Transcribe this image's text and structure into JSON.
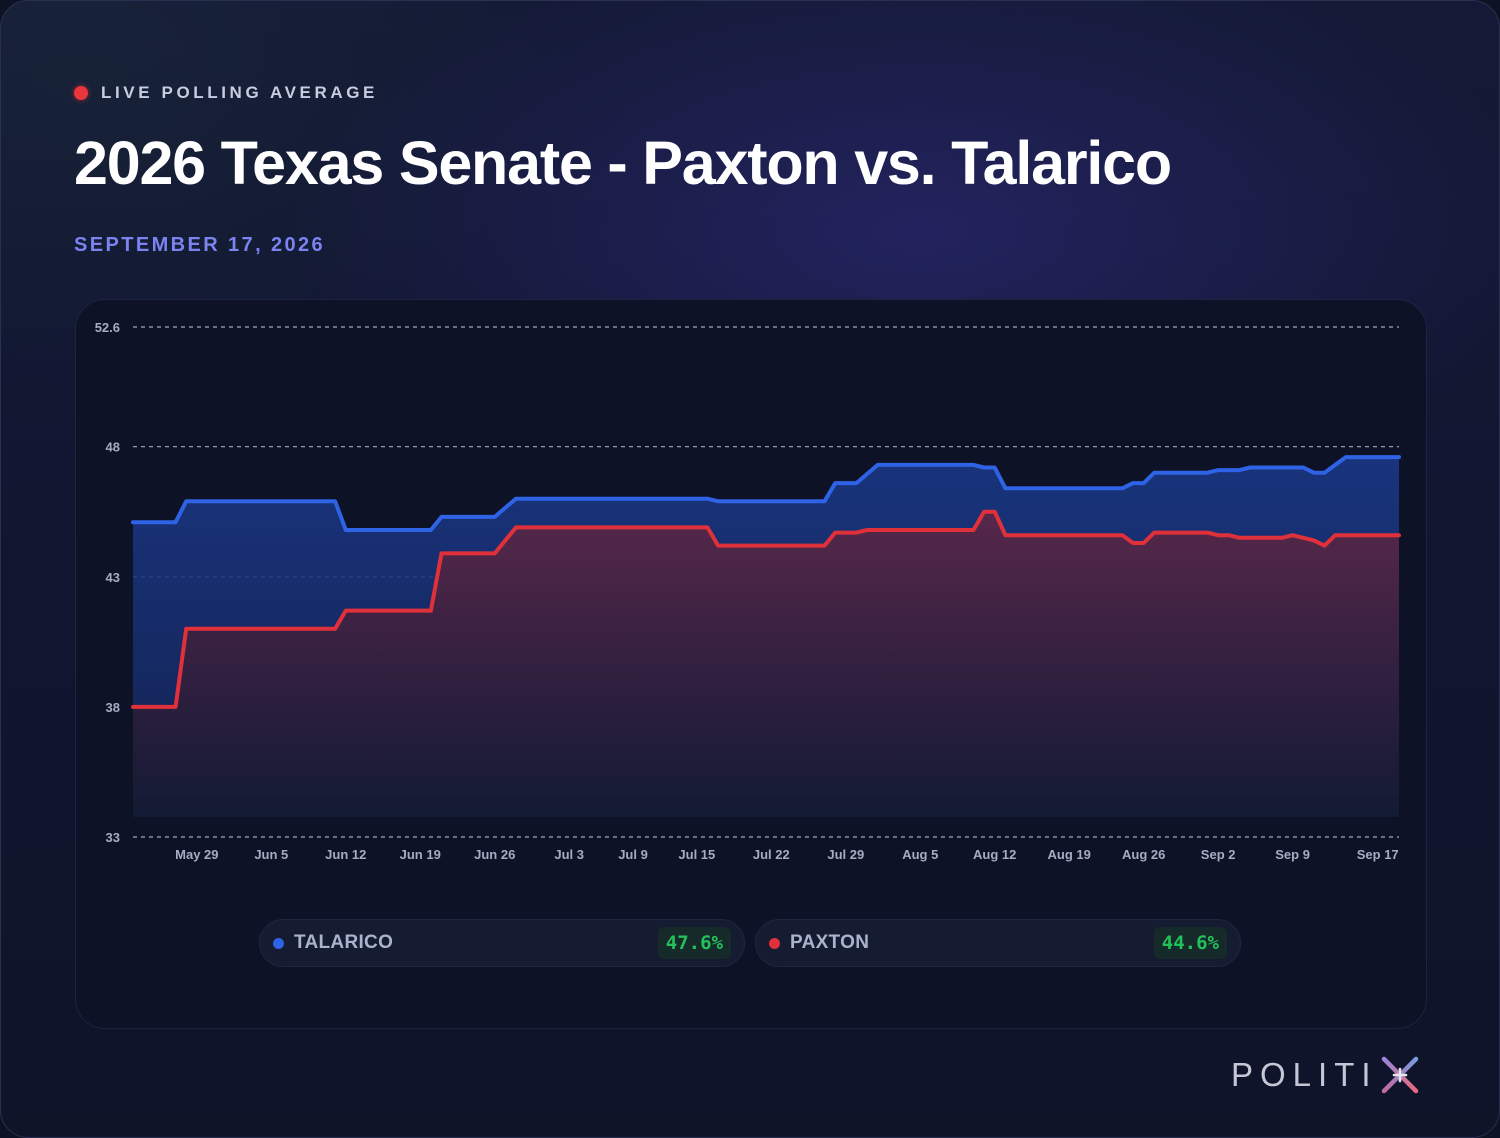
{
  "header": {
    "live_label": "LIVE POLLING AVERAGE",
    "title": "2026 Texas Senate - Paxton vs. Talarico",
    "date": "SEPTEMBER 17, 2026"
  },
  "brand": {
    "name": "POLITI",
    "mark_icon": "x-plus-logo-icon"
  },
  "colors": {
    "talarico": "#2f63e6",
    "paxton": "#e0303a",
    "live_dot": "#e8363c",
    "date": "#7c82f0",
    "value": "#22c05a"
  },
  "legend": [
    {
      "name": "TALARICO",
      "value": "47.6%",
      "color": "#2f63e6"
    },
    {
      "name": "PAXTON",
      "value": "44.6%",
      "color": "#e0303a"
    }
  ],
  "chart_data": {
    "type": "area",
    "title": "",
    "xlabel": "",
    "ylabel": "",
    "ylim": [
      33,
      52.6
    ],
    "yticks": [
      52.6,
      48,
      43,
      38,
      33
    ],
    "grid": true,
    "legend_position": "bottom",
    "xticks": [
      {
        "label": "May 29",
        "date": "2026-05-29"
      },
      {
        "label": "Jun 5",
        "date": "2026-06-05"
      },
      {
        "label": "Jun 12",
        "date": "2026-06-12"
      },
      {
        "label": "Jun 19",
        "date": "2026-06-19"
      },
      {
        "label": "Jun 26",
        "date": "2026-06-26"
      },
      {
        "label": "Jul 3",
        "date": "2026-07-03"
      },
      {
        "label": "Jul 9",
        "date": "2026-07-09"
      },
      {
        "label": "Jul 15",
        "date": "2026-07-15"
      },
      {
        "label": "Jul 22",
        "date": "2026-07-22"
      },
      {
        "label": "Jul 29",
        "date": "2026-07-29"
      },
      {
        "label": "Aug 5",
        "date": "2026-08-05"
      },
      {
        "label": "Aug 12",
        "date": "2026-08-12"
      },
      {
        "label": "Aug 19",
        "date": "2026-08-19"
      },
      {
        "label": "Aug 26",
        "date": "2026-08-26"
      },
      {
        "label": "Sep 2",
        "date": "2026-09-02"
      },
      {
        "label": "Sep 9",
        "date": "2026-09-09"
      },
      {
        "label": "Sep 17",
        "date": "2026-09-17"
      }
    ],
    "series": [
      {
        "name": "TALARICO",
        "color": "#2f63e6",
        "points": [
          [
            "2026-05-23",
            45.1
          ],
          [
            "2026-05-27",
            45.1
          ],
          [
            "2026-05-28",
            45.9
          ],
          [
            "2026-06-11",
            45.9
          ],
          [
            "2026-06-12",
            44.8
          ],
          [
            "2026-06-20",
            44.8
          ],
          [
            "2026-06-21",
            45.3
          ],
          [
            "2026-06-26",
            45.3
          ],
          [
            "2026-06-28",
            46.0
          ],
          [
            "2026-07-16",
            46.0
          ],
          [
            "2026-07-17",
            45.9
          ],
          [
            "2026-07-27",
            45.9
          ],
          [
            "2026-07-28",
            46.6
          ],
          [
            "2026-07-30",
            46.6
          ],
          [
            "2026-08-01",
            47.3
          ],
          [
            "2026-08-10",
            47.3
          ],
          [
            "2026-08-11",
            47.2
          ],
          [
            "2026-08-12",
            47.2
          ],
          [
            "2026-08-13",
            46.4
          ],
          [
            "2026-08-24",
            46.4
          ],
          [
            "2026-08-25",
            46.6
          ],
          [
            "2026-08-26",
            46.6
          ],
          [
            "2026-08-27",
            47.0
          ],
          [
            "2026-09-01",
            47.0
          ],
          [
            "2026-09-02",
            47.1
          ],
          [
            "2026-09-04",
            47.1
          ],
          [
            "2026-09-05",
            47.2
          ],
          [
            "2026-09-10",
            47.2
          ],
          [
            "2026-09-11",
            47.0
          ],
          [
            "2026-09-12",
            47.0
          ],
          [
            "2026-09-14",
            47.6
          ],
          [
            "2026-09-19",
            47.6
          ]
        ]
      },
      {
        "name": "PAXTON",
        "color": "#e0303a",
        "points": [
          [
            "2026-05-23",
            38.0
          ],
          [
            "2026-05-27",
            38.0
          ],
          [
            "2026-05-28",
            41.0
          ],
          [
            "2026-06-11",
            41.0
          ],
          [
            "2026-06-12",
            41.7
          ],
          [
            "2026-06-20",
            41.7
          ],
          [
            "2026-06-21",
            43.9
          ],
          [
            "2026-06-26",
            43.9
          ],
          [
            "2026-06-28",
            44.9
          ],
          [
            "2026-07-16",
            44.9
          ],
          [
            "2026-07-17",
            44.2
          ],
          [
            "2026-07-27",
            44.2
          ],
          [
            "2026-07-28",
            44.7
          ],
          [
            "2026-07-30",
            44.7
          ],
          [
            "2026-07-31",
            44.8
          ],
          [
            "2026-08-10",
            44.8
          ],
          [
            "2026-08-11",
            45.5
          ],
          [
            "2026-08-12",
            45.5
          ],
          [
            "2026-08-13",
            44.6
          ],
          [
            "2026-08-24",
            44.6
          ],
          [
            "2026-08-25",
            44.3
          ],
          [
            "2026-08-26",
            44.3
          ],
          [
            "2026-08-27",
            44.7
          ],
          [
            "2026-09-01",
            44.7
          ],
          [
            "2026-09-02",
            44.6
          ],
          [
            "2026-09-03",
            44.6
          ],
          [
            "2026-09-04",
            44.5
          ],
          [
            "2026-09-08",
            44.5
          ],
          [
            "2026-09-09",
            44.6
          ],
          [
            "2026-09-10",
            44.5
          ],
          [
            "2026-09-11",
            44.4
          ],
          [
            "2026-09-12",
            44.2
          ],
          [
            "2026-09-13",
            44.6
          ],
          [
            "2026-09-19",
            44.6
          ]
        ]
      }
    ]
  }
}
